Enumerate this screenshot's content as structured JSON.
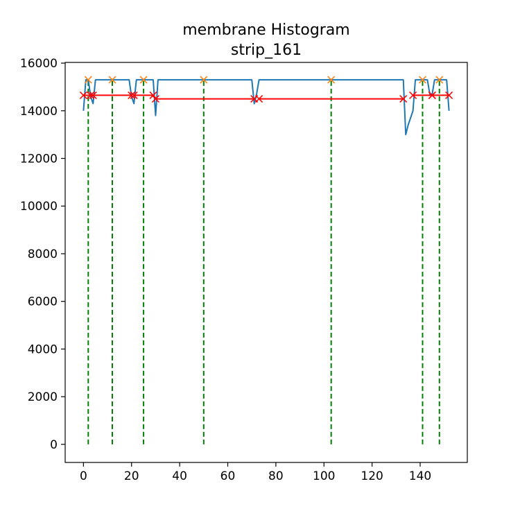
{
  "chart_data": {
    "type": "line",
    "title": "membrane Histogram",
    "subtitle": "strip_161",
    "xlabel": "",
    "ylabel": "",
    "xlim": [
      -7.6,
      159.6
    ],
    "ylim": [
      -760,
      16030
    ],
    "x_ticks": [
      0,
      20,
      40,
      60,
      80,
      100,
      120,
      140
    ],
    "y_ticks": [
      0,
      2000,
      4000,
      6000,
      8000,
      10000,
      12000,
      14000,
      16000
    ],
    "grid": false,
    "colors": {
      "histogram": "#1f77b4",
      "peaks": "#ff7f0e",
      "widths": "#ff0000",
      "peak_lines": "#008000"
    },
    "series": [
      {
        "type": "line",
        "color": "#1f77b4",
        "x": [
          0,
          1,
          2,
          3,
          4,
          5,
          19,
          20,
          21,
          22,
          23,
          29,
          30,
          31,
          32,
          70,
          71,
          72,
          73,
          74,
          133,
          134,
          135,
          137,
          138,
          139,
          143,
          144,
          145,
          146,
          147,
          149,
          150,
          151,
          152
        ],
        "y": [
          14000,
          15300,
          15300,
          14600,
          14300,
          15300,
          15300,
          14600,
          14300,
          15300,
          15300,
          15300,
          13800,
          15300,
          15300,
          15300,
          14300,
          14700,
          15300,
          15300,
          15300,
          13000,
          13400,
          14000,
          15300,
          15300,
          15300,
          14700,
          14700,
          15300,
          15300,
          15300,
          15300,
          15300,
          14000
        ]
      },
      {
        "type": "scatter",
        "marker": "x",
        "color": "#ff7f0e",
        "x": [
          2,
          12,
          25,
          50,
          103,
          141,
          148
        ],
        "y": [
          15300,
          15300,
          15300,
          15300,
          15300,
          15300,
          15300
        ]
      },
      {
        "type": "segments",
        "marker": "x",
        "color": "#ff0000",
        "segments": [
          [
            0,
            14650,
            4,
            14650
          ],
          [
            3,
            14650,
            20,
            14650
          ],
          [
            21,
            14650,
            29,
            14650
          ],
          [
            30,
            14500,
            71,
            14500
          ],
          [
            73,
            14500,
            133,
            14500
          ],
          [
            137,
            14650,
            145,
            14650
          ],
          [
            145,
            14650,
            152,
            14650
          ]
        ]
      },
      {
        "type": "vlines",
        "style": "dashed",
        "color": "#008000",
        "x": [
          2,
          12,
          25,
          50,
          103,
          141,
          148
        ],
        "ymin": 0,
        "ymax": 15300
      }
    ]
  }
}
